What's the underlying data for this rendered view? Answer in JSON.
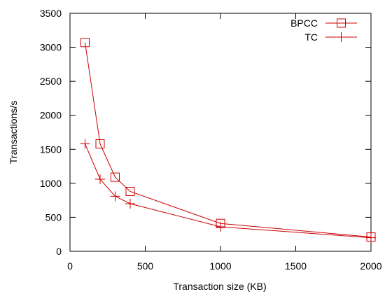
{
  "chart_data": {
    "type": "line",
    "title": "",
    "xlabel": "Transaction size (KB)",
    "ylabel": "Transactions/s",
    "xlim": [
      0,
      2000
    ],
    "ylim": [
      0,
      3500
    ],
    "xticks": [
      0,
      500,
      1000,
      1500,
      2000
    ],
    "yticks": [
      0,
      500,
      1000,
      1500,
      2000,
      2500,
      3000,
      3500
    ],
    "xtick_labels": [
      "0",
      "500",
      "1000",
      "1500",
      "2000"
    ],
    "ytick_labels": [
      "0",
      "500",
      "1000",
      "1500",
      "2000",
      "2500",
      "3000",
      "3500"
    ],
    "grid": false,
    "legend_position": "top-right",
    "line_color": "#cc0000",
    "series": [
      {
        "name": "BPCC",
        "marker": "square",
        "x": [
          100,
          200,
          300,
          400,
          1000,
          2000
        ],
        "y": [
          3070,
          1580,
          1090,
          880,
          410,
          210
        ]
      },
      {
        "name": "TC",
        "marker": "plus",
        "x": [
          100,
          200,
          300,
          400,
          1000,
          2000
        ],
        "y": [
          1580,
          1060,
          810,
          700,
          360,
          200
        ]
      }
    ]
  }
}
